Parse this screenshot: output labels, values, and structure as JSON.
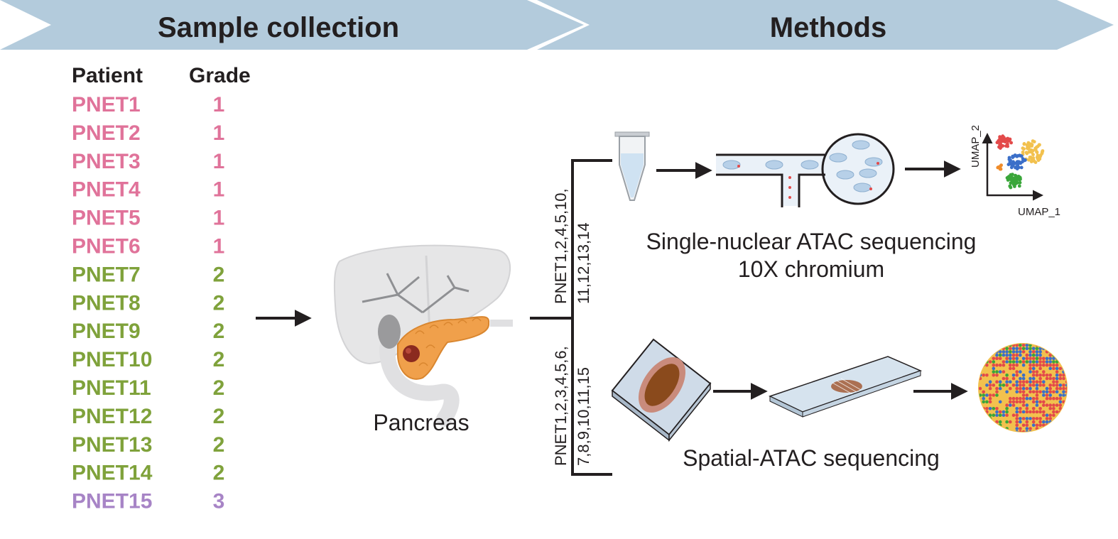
{
  "banners": {
    "sample_collection": "Sample collection",
    "methods": "Methods"
  },
  "table": {
    "headers": {
      "patient": "Patient",
      "grade": "Grade"
    },
    "rows": [
      {
        "patient": "PNET1",
        "grade": "1"
      },
      {
        "patient": "PNET2",
        "grade": "1"
      },
      {
        "patient": "PNET3",
        "grade": "1"
      },
      {
        "patient": "PNET4",
        "grade": "1"
      },
      {
        "patient": "PNET5",
        "grade": "1"
      },
      {
        "patient": "PNET6",
        "grade": "1"
      },
      {
        "patient": "PNET7",
        "grade": "2"
      },
      {
        "patient": "PNET8",
        "grade": "2"
      },
      {
        "patient": "PNET9",
        "grade": "2"
      },
      {
        "patient": "PNET10",
        "grade": "2"
      },
      {
        "patient": "PNET11",
        "grade": "2"
      },
      {
        "patient": "PNET12",
        "grade": "2"
      },
      {
        "patient": "PNET13",
        "grade": "2"
      },
      {
        "patient": "PNET14",
        "grade": "2"
      },
      {
        "patient": "PNET15",
        "grade": "3"
      }
    ]
  },
  "grade_colors": {
    "1": "#e0739a",
    "2": "#7fa23b",
    "3": "#a784c6"
  },
  "organ_label": "Pancreas",
  "branches": {
    "snatac": {
      "samples_line1": "PNET1,2,4,5,10,",
      "samples_line2": "11,12,13,14",
      "title": "Single-nuclear ATAC sequencing",
      "subtitle": "10X chromium",
      "umap_x": "UMAP_1",
      "umap_y": "UMAP_2"
    },
    "spatial": {
      "samples_line1": "PNET1,2,3,4,5,6,",
      "samples_line2": "7,8,9,10,11,15",
      "title": "Spatial-ATAC sequencing"
    }
  },
  "colors": {
    "banner": "#b3cbdc",
    "text": "#231f20",
    "pancreas": "#f0a04b",
    "tumor": "#8b2a1f",
    "cluster_red": "#e34a4a",
    "cluster_yellow": "#f2c14e",
    "cluster_blue": "#3b6fc9",
    "cluster_green": "#3aa63a",
    "cluster_orange": "#f08c2a"
  }
}
